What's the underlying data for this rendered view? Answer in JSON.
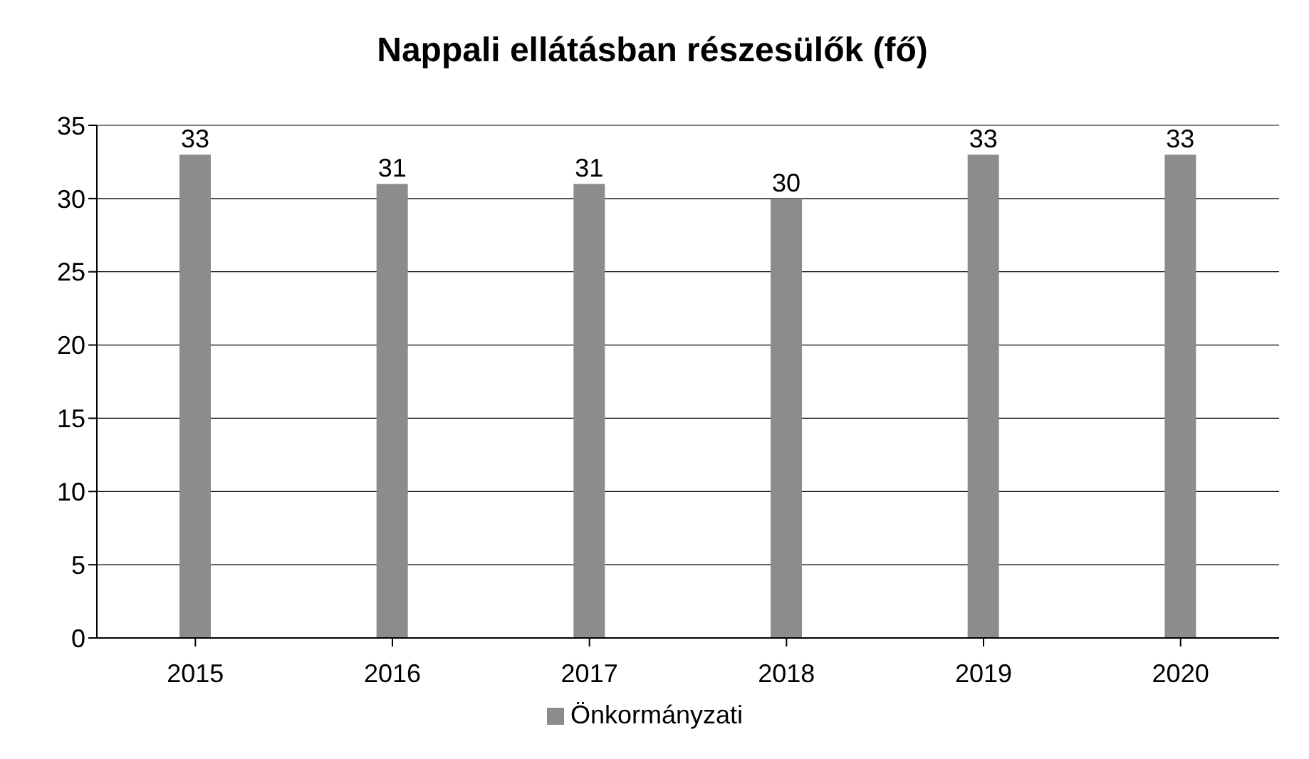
{
  "chart_data": {
    "type": "bar",
    "title": "Nappali ellátásban részesülők (fő)",
    "categories": [
      "2015",
      "2016",
      "2017",
      "2018",
      "2019",
      "2020"
    ],
    "series": [
      {
        "name": "Önkormányzati",
        "color": "#8c8c8c",
        "values": [
          33,
          31,
          31,
          30,
          33,
          33
        ]
      }
    ],
    "ylim": [
      0,
      35
    ],
    "yticks": [
      0,
      5,
      10,
      15,
      20,
      25,
      30,
      35
    ],
    "grid": "y",
    "data_labels": true,
    "legend": "bottom"
  }
}
